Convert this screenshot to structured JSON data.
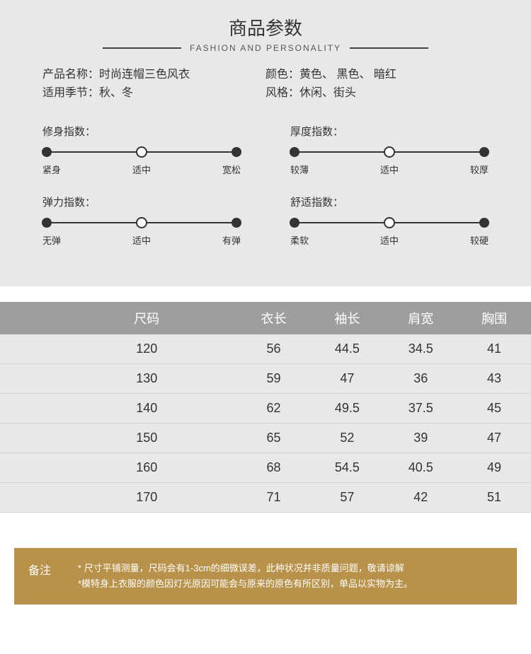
{
  "header": {
    "title": "商品参数",
    "subtitle": "FASHION AND PERSONALITY"
  },
  "attributes": {
    "left": [
      {
        "label": "产品名称：",
        "value": "时尚连帽三色风衣"
      },
      {
        "label": "适用季节：",
        "value": "秋、冬"
      }
    ],
    "right": [
      {
        "label": "颜色：",
        "value": "黄色、 黑色、 暗红"
      },
      {
        "label": "风格：",
        "value": "休闲、街头"
      }
    ]
  },
  "sliders": [
    {
      "label": "修身指数：",
      "ticks": [
        "紧身",
        "适中",
        "宽松"
      ],
      "selected_index": 1
    },
    {
      "label": "厚度指数：",
      "ticks": [
        "较薄",
        "适中",
        "较厚"
      ],
      "selected_index": 1
    },
    {
      "label": "弹力指数：",
      "ticks": [
        "无弹",
        "适中",
        "有弹"
      ],
      "selected_index": 1
    },
    {
      "label": "舒适指数：",
      "ticks": [
        "柔软",
        "适中",
        "较硬"
      ],
      "selected_index": 1
    }
  ],
  "size_table": {
    "columns": [
      "尺码",
      "衣长",
      "袖长",
      "肩宽",
      "胸围"
    ],
    "rows": [
      [
        "120",
        "56",
        "44.5",
        "34.5",
        "41"
      ],
      [
        "130",
        "59",
        "47",
        "36",
        "43"
      ],
      [
        "140",
        "62",
        "49.5",
        "37.5",
        "45"
      ],
      [
        "150",
        "65",
        "52",
        "39",
        "47"
      ],
      [
        "160",
        "68",
        "54.5",
        "40.5",
        "49"
      ],
      [
        "170",
        "71",
        "57",
        "42",
        "51"
      ]
    ]
  },
  "note": {
    "label": "备注",
    "lines": [
      "* 尺寸平铺测量，尺码会有1-3cm的细微误差，此种状况并非质量问题，敬请谅解",
      "*模特身上衣服的颜色因灯光原因可能会与原来的原色有所区别，单品以实物为主。"
    ]
  },
  "colors": {
    "panel_bg": "#e8e8e8",
    "header_bar": "#9e9e9e",
    "note_bg": "#b8914a",
    "text": "#333333",
    "white": "#ffffff"
  }
}
